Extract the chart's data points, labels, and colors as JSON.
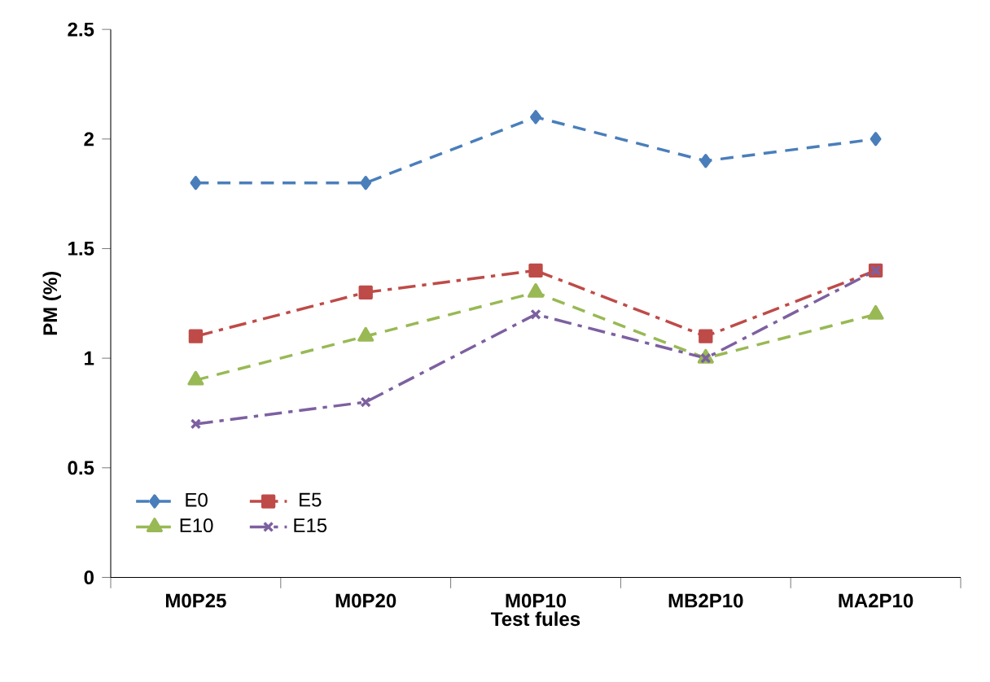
{
  "chart_data": {
    "type": "line",
    "xlabel": "Test fules",
    "ylabel": "PM (%)",
    "categories": [
      "M0P25",
      "M0P20",
      "M0P10",
      "MB2P10",
      "MA2P10"
    ],
    "series": [
      {
        "name": "E0",
        "color": "#4a7ebb",
        "values": [
          1.8,
          1.8,
          2.1,
          1.9,
          2.0
        ],
        "marker": "diamond",
        "line_style": "dashed"
      },
      {
        "name": "E5",
        "color": "#be4b48",
        "values": [
          1.1,
          1.3,
          1.4,
          1.1,
          1.4
        ],
        "marker": "square",
        "line_style": "dashdot"
      },
      {
        "name": "E10",
        "color": "#98b954",
        "values": [
          0.9,
          1.1,
          1.3,
          1.0,
          1.2
        ],
        "marker": "triangle",
        "line_style": "dashed"
      },
      {
        "name": "E15",
        "color": "#7d60a0",
        "values": [
          0.7,
          0.8,
          1.2,
          1.0,
          1.4
        ],
        "marker": "cross",
        "line_style": "dashdot"
      }
    ],
    "ylim": [
      0,
      2.5
    ],
    "yticks": [
      0,
      0.5,
      1,
      1.5,
      2,
      2.5
    ],
    "grid": false,
    "legend": "bottom left"
  }
}
